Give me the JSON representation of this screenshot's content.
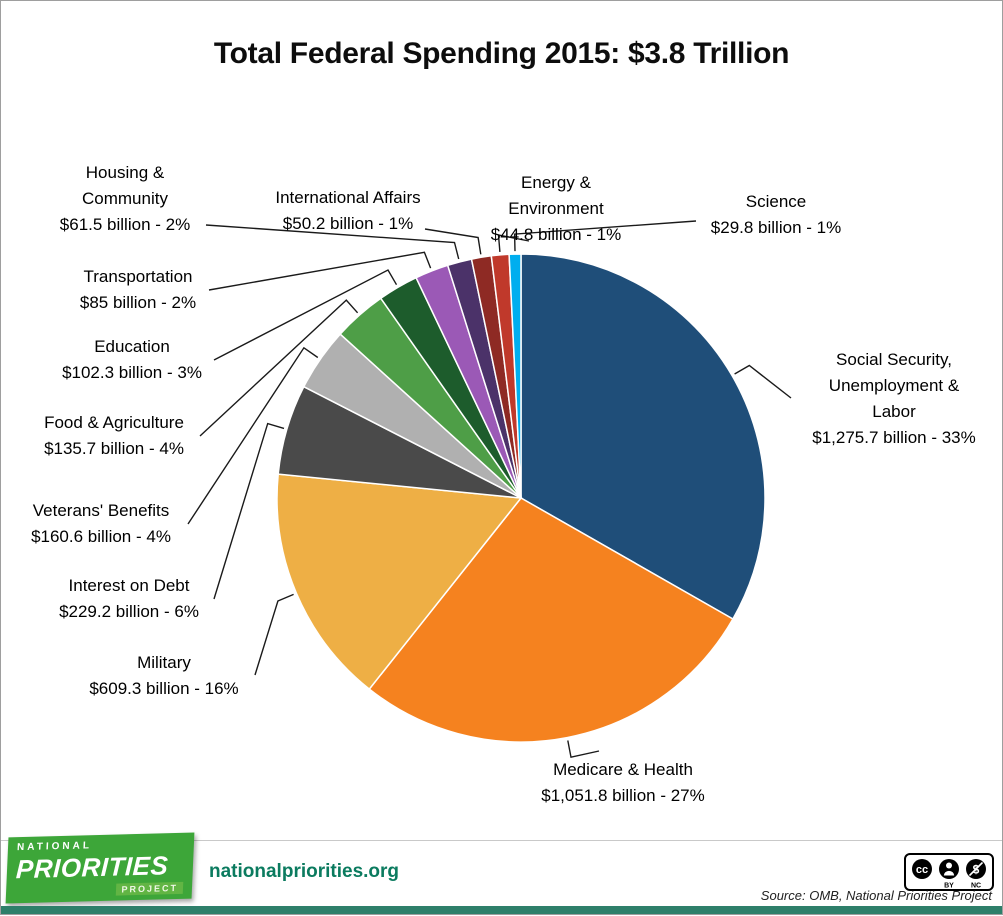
{
  "page": {
    "title": "Total Federal Spending 2015: $3.8 Trillion"
  },
  "chart_data": {
    "type": "pie",
    "title": "Total Federal Spending 2015: $3.8 Trillion",
    "total_label": "$3.8 Trillion",
    "values_unit": "billions USD",
    "legend_position": "outside-labels-with-leader-lines",
    "segments": [
      {
        "id": "social-security",
        "name": "Social Security, Unemployment & Labor",
        "label_lines": [
          "Social Security,",
          "Unemployment &",
          "Labor"
        ],
        "value": 1275.7,
        "pct": 33,
        "value_label": "$1,275.7 billion - 33%",
        "color": "#1f4e79"
      },
      {
        "id": "medicare-health",
        "name": "Medicare & Health",
        "label_lines": [
          "Medicare & Health"
        ],
        "value": 1051.8,
        "pct": 27,
        "value_label": "$1,051.8 billion - 27%",
        "color": "#f5821f"
      },
      {
        "id": "military",
        "name": "Military",
        "label_lines": [
          "Military"
        ],
        "value": 609.3,
        "pct": 16,
        "value_label": "$609.3 billion - 16%",
        "color": "#eeaf45"
      },
      {
        "id": "interest-on-debt",
        "name": "Interest on Debt",
        "label_lines": [
          "Interest on Debt"
        ],
        "value": 229.2,
        "pct": 6,
        "value_label": "$229.2 billion - 6%",
        "color": "#4a4a4a"
      },
      {
        "id": "veterans-benefits",
        "name": "Veterans' Benefits",
        "label_lines": [
          "Veterans' Benefits"
        ],
        "value": 160.6,
        "pct": 4,
        "value_label": "$160.6 billion - 4%",
        "color": "#b0b0b0"
      },
      {
        "id": "food-agriculture",
        "name": "Food & Agriculture",
        "label_lines": [
          "Food & Agriculture"
        ],
        "value": 135.7,
        "pct": 4,
        "value_label": "$135.7 billion - 4%",
        "color": "#4e9e47"
      },
      {
        "id": "education",
        "name": "Education",
        "label_lines": [
          "Education"
        ],
        "value": 102.3,
        "pct": 3,
        "value_label": "$102.3 billion - 3%",
        "color": "#1d5c2c"
      },
      {
        "id": "transportation",
        "name": "Transportation",
        "label_lines": [
          "Transportation"
        ],
        "value": 85,
        "pct": 2,
        "value_label": "$85 billion - 2%",
        "color": "#9b59b6"
      },
      {
        "id": "housing-community",
        "name": "Housing & Community",
        "label_lines": [
          "Housing &",
          "Community"
        ],
        "value": 61.5,
        "pct": 2,
        "value_label": "$61.5 billion - 2%",
        "color": "#4b3269"
      },
      {
        "id": "international-affairs",
        "name": "International Affairs",
        "label_lines": [
          "International Affairs"
        ],
        "value": 50.2,
        "pct": 1,
        "value_label": "$50.2 billion - 1%",
        "color": "#8e2a24"
      },
      {
        "id": "energy-environment",
        "name": "Energy & Environment",
        "label_lines": [
          "Energy &",
          "Environment"
        ],
        "value": 44.8,
        "pct": 1,
        "value_label": "$44.8 billion - 1%",
        "color": "#c0392b"
      },
      {
        "id": "science",
        "name": "Science",
        "label_lines": [
          "Science"
        ],
        "value": 29.8,
        "pct": 1,
        "value_label": "$29.8 billion - 1%",
        "color": "#00aeef"
      }
    ]
  },
  "footer": {
    "logo_line1": "NATIONAL",
    "logo_line2": "PRIORITIES",
    "logo_line3": "PROJECT",
    "website": "nationalpriorities",
    "website_tld": ".org",
    "source": "Source: OMB, National Priorities Project",
    "license": {
      "cc": "cc",
      "by": "BY",
      "nc": "NC"
    }
  }
}
